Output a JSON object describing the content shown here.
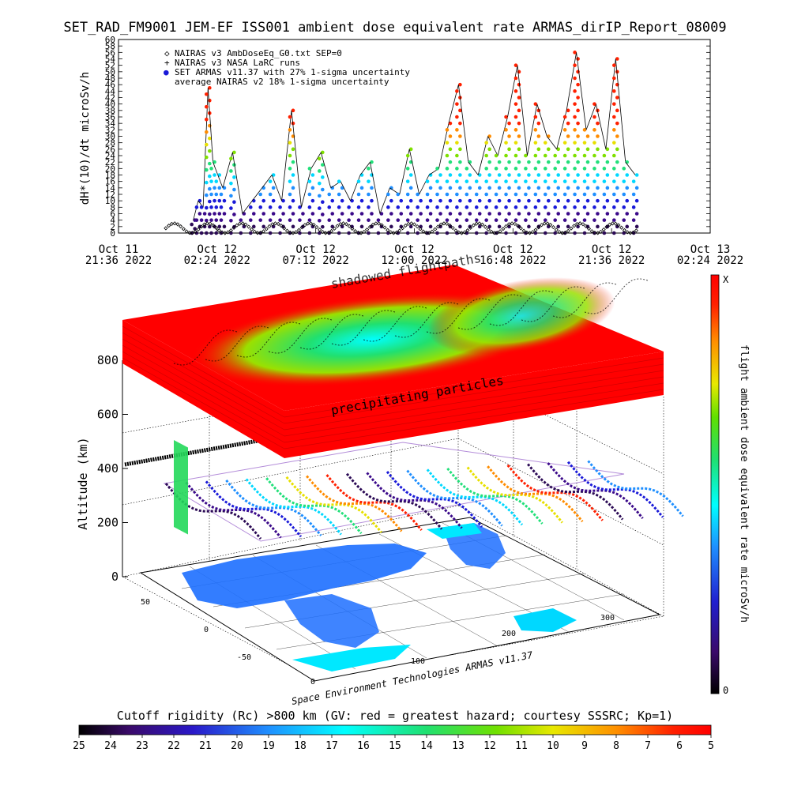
{
  "title": "SET_RAD_FM9001   JEM-EF ISS001 ambient dose equivalent rate ARMAS_dirIP_Report_08009",
  "credit": "Space Environment Technologies ARMAS v11.37",
  "colors": {
    "background": "#ffffff",
    "axis": "#000000",
    "series_armas_palette": [
      "#2b0a55",
      "#3b0a8a",
      "#1a1ad8",
      "#1f8fff",
      "#00d8ff",
      "#22e07a",
      "#7fe000",
      "#e7e000",
      "#ff8c00",
      "#ff2000"
    ],
    "naira_series": "#000000",
    "panel_red": "#ff0000",
    "panel_green": "#22d85a",
    "panel_cyan": "#00ffff",
    "land": "#1d6fff",
    "ocean_grid": "#000000"
  },
  "chart_data": [
    {
      "type": "scatter",
      "title": "SET_RAD_FM9001   JEM-EF ISS001 ambient dose equivalent rate ARMAS_dirIP_Report_08009",
      "ylabel": "dH*(10)/dt microSv/h",
      "xlabel": "",
      "ylim": [
        0,
        60
      ],
      "y_ticks": [
        "0",
        "2",
        "4",
        "6",
        "8",
        "10",
        "12",
        "14",
        "16",
        "18",
        "20",
        "22",
        "24",
        "26",
        "28",
        "30",
        "32",
        "34",
        "36",
        "38",
        "40",
        "42",
        "44",
        "46",
        "48",
        "50",
        "52",
        "54",
        "56",
        "58",
        "60"
      ],
      "x_ticks": [
        {
          "l1": "Oct 11",
          "l2": "21:36 2022"
        },
        {
          "l1": "Oct 12",
          "l2": "02:24 2022"
        },
        {
          "l1": "Oct 12",
          "l2": "07:12 2022"
        },
        {
          "l1": "Oct 12",
          "l2": "12:00 2022"
        },
        {
          "l1": "Oct 12",
          "l2": "16:48 2022"
        },
        {
          "l1": "Oct 12",
          "l2": "21:36 2022"
        },
        {
          "l1": "Oct 13",
          "l2": "02:24 2022"
        }
      ],
      "legend": [
        {
          "symbol": "◇",
          "label": "NAIRAS v3 AmbDoseEq_G0.txt SEP=0"
        },
        {
          "symbol": "+",
          "label": "NAIRAS v3 NASA LaRC runs"
        },
        {
          "symbol": "●",
          "label": "SET ARMAS v11.37 with 27% 1-sigma uncertainty"
        },
        {
          "symbol": "",
          "label": "average NAIRAS v2 18% 1-sigma uncertainty"
        }
      ],
      "legend_position": "top-left",
      "series": [
        {
          "name": "SET ARMAS v11.37 with 27% 1-sigma uncertainty",
          "marker": "dot",
          "points": [
            [
              0.08,
              4
            ],
            [
              0.09,
              10
            ],
            [
              0.1,
              8
            ],
            [
              0.11,
              45
            ],
            [
              0.12,
              22
            ],
            [
              0.13,
              18
            ],
            [
              0.14,
              14
            ],
            [
              0.16,
              25
            ],
            [
              0.18,
              6
            ],
            [
              0.2,
              10
            ],
            [
              0.22,
              14
            ],
            [
              0.24,
              18
            ],
            [
              0.26,
              10
            ],
            [
              0.28,
              38
            ],
            [
              0.3,
              8
            ],
            [
              0.32,
              20
            ],
            [
              0.34,
              25
            ],
            [
              0.36,
              14
            ],
            [
              0.38,
              16
            ],
            [
              0.4,
              10
            ],
            [
              0.42,
              18
            ],
            [
              0.44,
              22
            ],
            [
              0.46,
              6
            ],
            [
              0.48,
              14
            ],
            [
              0.5,
              12
            ],
            [
              0.52,
              26
            ],
            [
              0.54,
              12
            ],
            [
              0.56,
              18
            ],
            [
              0.58,
              20
            ],
            [
              0.6,
              34
            ],
            [
              0.62,
              46
            ],
            [
              0.64,
              22
            ],
            [
              0.66,
              18
            ],
            [
              0.68,
              30
            ],
            [
              0.7,
              24
            ],
            [
              0.72,
              36
            ],
            [
              0.74,
              52
            ],
            [
              0.76,
              24
            ],
            [
              0.78,
              40
            ],
            [
              0.8,
              30
            ],
            [
              0.82,
              26
            ],
            [
              0.84,
              38
            ],
            [
              0.86,
              56
            ],
            [
              0.88,
              32
            ],
            [
              0.9,
              40
            ],
            [
              0.92,
              26
            ],
            [
              0.94,
              54
            ],
            [
              0.96,
              22
            ],
            [
              0.98,
              18
            ]
          ]
        },
        {
          "name": "NAIRAS v3 AmbDoseEq_G0.txt SEP=0",
          "marker": "diamond",
          "points": [
            [
              0.05,
              0.5
            ],
            [
              0.1,
              2
            ],
            [
              0.15,
              1
            ],
            [
              0.2,
              3
            ],
            [
              0.25,
              1
            ],
            [
              0.3,
              2.5
            ],
            [
              0.35,
              1
            ],
            [
              0.4,
              3
            ],
            [
              0.45,
              1
            ],
            [
              0.5,
              2.5
            ],
            [
              0.55,
              1
            ],
            [
              0.6,
              3
            ],
            [
              0.65,
              1
            ],
            [
              0.7,
              3
            ],
            [
              0.75,
              1
            ],
            [
              0.8,
              3
            ],
            [
              0.85,
              1
            ],
            [
              0.9,
              3
            ],
            [
              0.95,
              1
            ]
          ]
        }
      ]
    },
    {
      "type": "heatmap",
      "title": "",
      "zlabel": "Altitude (km)",
      "z_ticks": [
        "0",
        "200",
        "400",
        "600",
        "800"
      ],
      "lat_ticks": [
        "50",
        "0",
        "-50"
      ],
      "lon_ticks": [
        "0",
        "100",
        "200",
        "300"
      ],
      "colorbar_label": "flight ambient dose equivalent rate microSv/h",
      "colorbar_max_label": "X",
      "colorbar_min_label": "0",
      "annotations": [
        "shadowed flightpaths",
        "precipitating particles"
      ]
    },
    {
      "type": "heatmap",
      "title": "Cutoff rigidity (Rc) >800 km (GV: red = greatest hazard; courtesy SSSRC; Kp=1)",
      "colorbar_ticks": [
        "25",
        "24",
        "23",
        "22",
        "21",
        "20",
        "19",
        "18",
        "17",
        "16",
        "15",
        "14",
        "13",
        "12",
        "11",
        "10",
        "9",
        "8",
        "7",
        "6",
        "5"
      ]
    }
  ]
}
